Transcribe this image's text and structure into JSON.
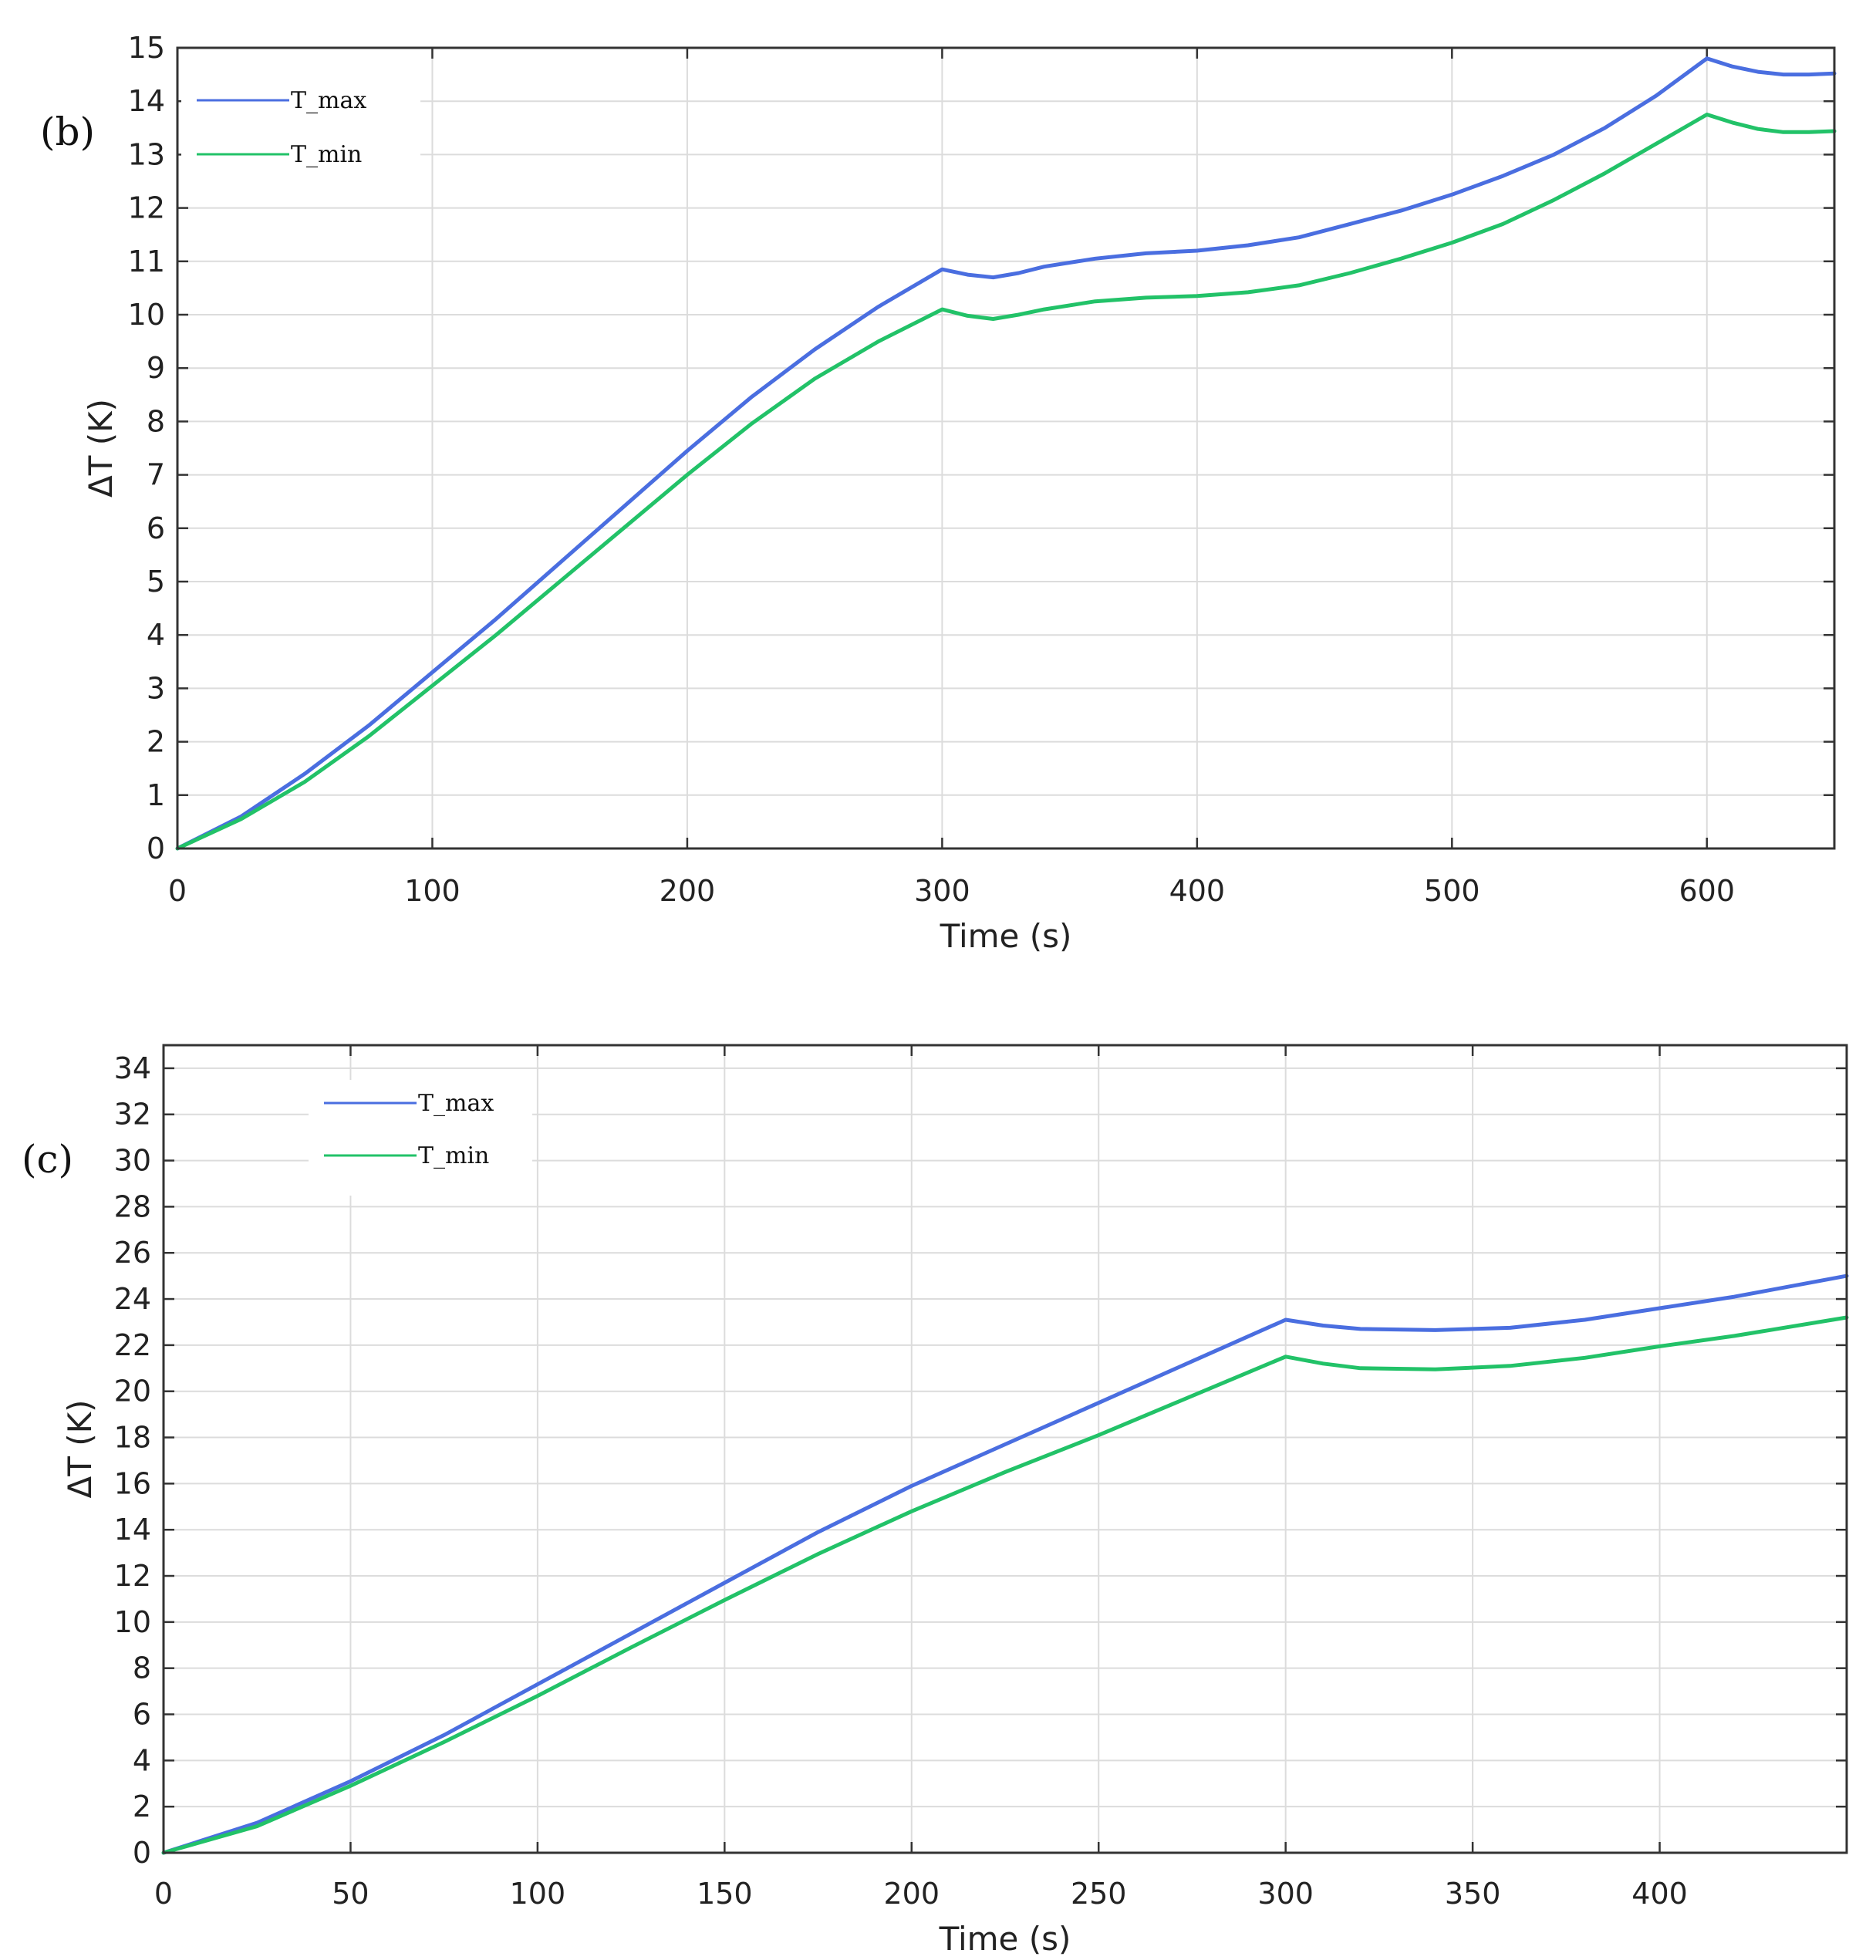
{
  "chart_data": [
    {
      "type": "line",
      "panel_label": "(b)",
      "xlabel": "Time (s)",
      "ylabel": "ΔT (K)",
      "xlim": [
        0,
        650
      ],
      "ylim": [
        0,
        15
      ],
      "x_ticks": [
        0,
        100,
        200,
        300,
        400,
        500,
        600
      ],
      "y_ticks": [
        0,
        1,
        2,
        3,
        4,
        5,
        6,
        7,
        8,
        9,
        10,
        11,
        12,
        13,
        14,
        15
      ],
      "grid": true,
      "legend_position": "top-left",
      "series": [
        {
          "name": "T_max",
          "color": "#4a6ee0",
          "x": [
            0,
            25,
            50,
            75,
            100,
            125,
            150,
            175,
            200,
            225,
            250,
            275,
            300,
            310,
            320,
            330,
            340,
            360,
            380,
            400,
            420,
            440,
            460,
            480,
            500,
            520,
            540,
            560,
            580,
            600,
            610,
            620,
            630,
            640,
            650
          ],
          "y": [
            0,
            0.6,
            1.4,
            2.3,
            3.3,
            4.3,
            5.35,
            6.4,
            7.45,
            8.45,
            9.35,
            10.15,
            10.85,
            10.75,
            10.7,
            10.78,
            10.9,
            11.05,
            11.15,
            11.2,
            11.3,
            11.45,
            11.7,
            11.95,
            12.25,
            12.6,
            13.0,
            13.5,
            14.1,
            14.8,
            14.65,
            14.55,
            14.5,
            14.5,
            14.52
          ]
        },
        {
          "name": "T_min",
          "color": "#22c268",
          "x": [
            0,
            25,
            50,
            75,
            100,
            125,
            150,
            175,
            200,
            225,
            250,
            275,
            300,
            310,
            320,
            330,
            340,
            360,
            380,
            400,
            420,
            440,
            460,
            480,
            500,
            520,
            540,
            560,
            580,
            600,
            610,
            620,
            630,
            640,
            650
          ],
          "y": [
            0,
            0.55,
            1.25,
            2.1,
            3.05,
            4.0,
            5.0,
            6.0,
            7.0,
            7.95,
            8.8,
            9.5,
            10.1,
            9.98,
            9.92,
            10.0,
            10.1,
            10.25,
            10.32,
            10.35,
            10.42,
            10.55,
            10.78,
            11.05,
            11.35,
            11.7,
            12.15,
            12.65,
            13.2,
            13.75,
            13.6,
            13.48,
            13.42,
            13.42,
            13.44
          ]
        }
      ]
    },
    {
      "type": "line",
      "panel_label": "(c)",
      "xlabel": "Time (s)",
      "ylabel": "ΔT (K)",
      "xlim": [
        0,
        450
      ],
      "ylim": [
        0,
        35
      ],
      "x_ticks": [
        0,
        50,
        100,
        150,
        200,
        250,
        300,
        350,
        400
      ],
      "y_ticks": [
        0,
        2,
        4,
        6,
        8,
        10,
        12,
        14,
        16,
        18,
        20,
        22,
        24,
        26,
        28,
        30,
        32,
        34
      ],
      "grid": true,
      "legend_position": "top-left",
      "series": [
        {
          "name": "T_max",
          "color": "#4a6ee0",
          "x": [
            0,
            25,
            50,
            75,
            100,
            125,
            150,
            175,
            200,
            225,
            250,
            275,
            300,
            310,
            320,
            340,
            360,
            380,
            400,
            420,
            450
          ],
          "y": [
            0,
            1.3,
            3.1,
            5.1,
            7.3,
            9.5,
            11.7,
            13.9,
            15.9,
            17.7,
            19.5,
            21.3,
            23.1,
            22.85,
            22.7,
            22.65,
            22.75,
            23.1,
            23.6,
            24.1,
            25.0
          ]
        },
        {
          "name": "T_min",
          "color": "#22c268",
          "x": [
            0,
            25,
            50,
            75,
            100,
            125,
            150,
            175,
            200,
            225,
            250,
            275,
            300,
            310,
            320,
            340,
            360,
            380,
            400,
            420,
            450
          ],
          "y": [
            0,
            1.15,
            2.9,
            4.8,
            6.8,
            8.9,
            10.95,
            12.95,
            14.8,
            16.5,
            18.1,
            19.8,
            21.5,
            21.2,
            21.0,
            20.95,
            21.1,
            21.45,
            21.95,
            22.4,
            23.2
          ]
        }
      ]
    }
  ]
}
